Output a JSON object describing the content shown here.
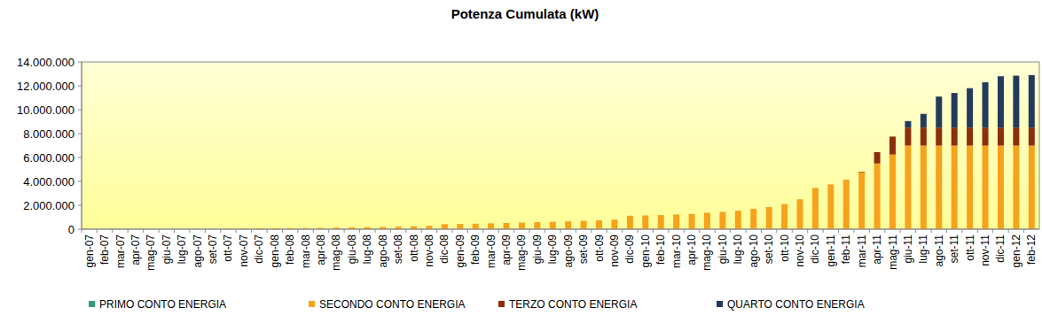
{
  "chart_data": {
    "type": "bar",
    "title": "Potenza Cumulata (kW)",
    "stacked": true,
    "grid": false,
    "legend": "bottom",
    "categories": [
      "gen-07",
      "feb-07",
      "mar-07",
      "apr-07",
      "mag-07",
      "giu-07",
      "lug-07",
      "ago-07",
      "set-07",
      "ott-07",
      "nov-07",
      "dic-07",
      "gen-08",
      "feb-08",
      "mar-08",
      "apr-08",
      "mag-08",
      "giu-08",
      "lug-08",
      "ago-08",
      "set-08",
      "ott-08",
      "nov-08",
      "dic-08",
      "gen-09",
      "feb-09",
      "mar-09",
      "apr-09",
      "mag-09",
      "giu-09",
      "lug-09",
      "ago-09",
      "set-09",
      "ott-09",
      "nov-09",
      "dic-09",
      "gen-10",
      "feb-10",
      "mar-10",
      "apr-10",
      "mag-10",
      "giu-10",
      "lug-10",
      "ago-10",
      "set-10",
      "ott-10",
      "nov-10",
      "dic-10",
      "gen-11",
      "feb-11",
      "mar-11",
      "apr-11",
      "mag-11",
      "giu-11",
      "lug-11",
      "ago-11",
      "set-11",
      "ott-11",
      "nov-11",
      "dic-11",
      "gen-12",
      "feb-12"
    ],
    "series": [
      {
        "name": "PRIMO CONTO ENERGIA",
        "color": "#2e9e78",
        "values": [
          0,
          0,
          0,
          0,
          0,
          0,
          0,
          0,
          0,
          0,
          0,
          0,
          0,
          0,
          0,
          0,
          0,
          0,
          0,
          0,
          0,
          0,
          0,
          0,
          0,
          0,
          0,
          0,
          0,
          0,
          0,
          0,
          0,
          0,
          0,
          0,
          0,
          0,
          0,
          0,
          0,
          0,
          0,
          0,
          0,
          0,
          0,
          0,
          0,
          0,
          0,
          0,
          0,
          0,
          0,
          0,
          0,
          0,
          0,
          0,
          0,
          0
        ]
      },
      {
        "name": "SECONDO CONTO ENERGIA",
        "color": "#f7a21c",
        "values": [
          0,
          1000,
          3000,
          6000,
          10000,
          15000,
          20000,
          25000,
          30000,
          40000,
          50000,
          70000,
          80000,
          90000,
          100000,
          110000,
          130000,
          150000,
          170000,
          190000,
          210000,
          240000,
          280000,
          420000,
          440000,
          460000,
          490000,
          520000,
          550000,
          590000,
          620000,
          660000,
          700000,
          740000,
          800000,
          1130000,
          1150000,
          1180000,
          1230000,
          1280000,
          1380000,
          1450000,
          1550000,
          1700000,
          1850000,
          2100000,
          2500000,
          3450000,
          3750000,
          4150000,
          4750000,
          5500000,
          6250000,
          7000000,
          7000000,
          7000000,
          7000000,
          7000000,
          7000000,
          7000000,
          7000000,
          7000000
        ]
      },
      {
        "name": "TERZO CONTO ENERGIA",
        "color": "#8b2e0c",
        "values": [
          0,
          0,
          0,
          0,
          0,
          0,
          0,
          0,
          0,
          0,
          0,
          0,
          0,
          0,
          0,
          0,
          0,
          0,
          0,
          0,
          0,
          0,
          0,
          0,
          0,
          0,
          0,
          0,
          0,
          0,
          0,
          0,
          0,
          0,
          0,
          0,
          0,
          0,
          0,
          0,
          0,
          0,
          0,
          0,
          0,
          0,
          0,
          0,
          0,
          0,
          50000,
          950000,
          1500000,
          1500000,
          1500000,
          1500000,
          1500000,
          1500000,
          1500000,
          1500000,
          1500000,
          1500000
        ]
      },
      {
        "name": "QUARTO CONTO ENERGIA",
        "color": "#243a5c",
        "values": [
          0,
          0,
          0,
          0,
          0,
          0,
          0,
          0,
          0,
          0,
          0,
          0,
          0,
          0,
          0,
          0,
          0,
          0,
          0,
          0,
          0,
          0,
          0,
          0,
          0,
          0,
          0,
          0,
          0,
          0,
          0,
          0,
          0,
          0,
          0,
          0,
          0,
          0,
          0,
          0,
          0,
          0,
          0,
          0,
          0,
          0,
          0,
          0,
          0,
          0,
          0,
          0,
          0,
          550000,
          1150000,
          2600000,
          2900000,
          3300000,
          3800000,
          4300000,
          4350000,
          4400000
        ]
      }
    ],
    "ylim": [
      0,
      14000000
    ],
    "yticks": [
      0,
      {
        "value": 2000000,
        "label": "2.000.000"
      },
      {
        "value": 4000000,
        "label": "4.000.000"
      },
      {
        "value": 6000000,
        "label": "6.000.000"
      },
      {
        "value": 8000000,
        "label": "8.000.000"
      },
      {
        "value": 10000000,
        "label": "10.000.000"
      },
      {
        "value": 12000000,
        "label": "12.000.000"
      },
      {
        "value": 14000000,
        "label": "14.000.000"
      }
    ]
  }
}
